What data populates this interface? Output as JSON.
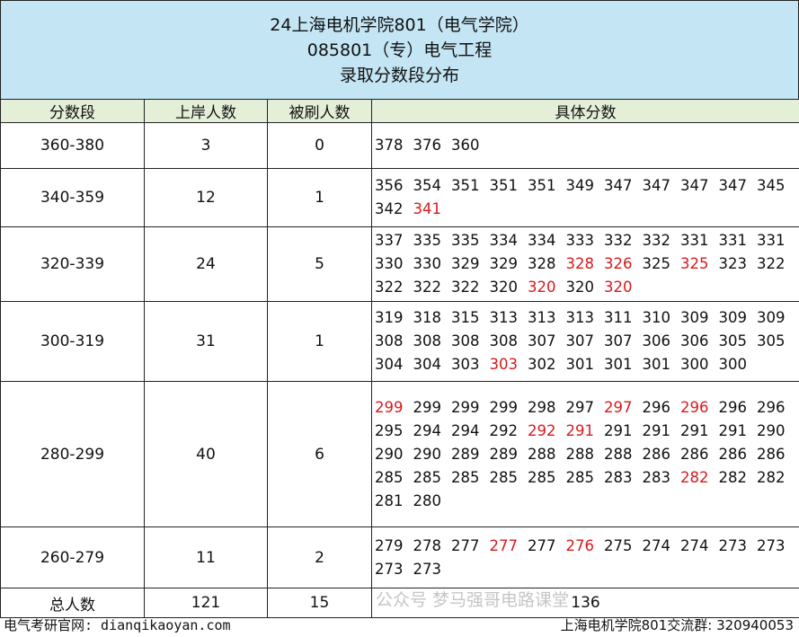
{
  "title": {
    "line1": "24上海电机学院801（电气学院）",
    "line2": "085801（专）电气工程",
    "line3": "录取分数段分布"
  },
  "headers": [
    "分数段",
    "上岸人数",
    "被刷人数",
    "具体分数"
  ],
  "rows": [
    {
      "range": "360-380",
      "admitted": "3",
      "rejected": "0",
      "scores": [
        [
          "378",
          0
        ],
        [
          "376",
          0
        ],
        [
          "360",
          0
        ]
      ]
    },
    {
      "range": "340-359",
      "admitted": "12",
      "rejected": "1",
      "scores": [
        [
          "356",
          0
        ],
        [
          "354",
          0
        ],
        [
          "351",
          0
        ],
        [
          "351",
          0
        ],
        [
          "351",
          0
        ],
        [
          "349",
          0
        ],
        [
          "347",
          0
        ],
        [
          "347",
          0
        ],
        [
          "347",
          0
        ],
        [
          "347",
          0
        ],
        [
          "345",
          0
        ],
        [
          "342",
          0
        ],
        [
          "341",
          1
        ]
      ]
    },
    {
      "range": "320-339",
      "admitted": "24",
      "rejected": "5",
      "scores": [
        [
          "337",
          0
        ],
        [
          "335",
          0
        ],
        [
          "335",
          0
        ],
        [
          "334",
          0
        ],
        [
          "334",
          0
        ],
        [
          "333",
          0
        ],
        [
          "332",
          0
        ],
        [
          "332",
          0
        ],
        [
          "331",
          0
        ],
        [
          "331",
          0
        ],
        [
          "331",
          0
        ],
        [
          "330",
          0
        ],
        [
          "330",
          0
        ],
        [
          "329",
          0
        ],
        [
          "329",
          0
        ],
        [
          "328",
          0
        ],
        [
          "328",
          1
        ],
        [
          "326",
          1
        ],
        [
          "325",
          0
        ],
        [
          "325",
          1
        ],
        [
          "323",
          0
        ],
        [
          "322",
          0
        ],
        [
          "322",
          0
        ],
        [
          "322",
          0
        ],
        [
          "322",
          0
        ],
        [
          "320",
          0
        ],
        [
          "320",
          1
        ],
        [
          "320",
          0
        ],
        [
          "320",
          1
        ]
      ]
    },
    {
      "range": "300-319",
      "admitted": "31",
      "rejected": "1",
      "scores": [
        [
          "319",
          0
        ],
        [
          "318",
          0
        ],
        [
          "315",
          0
        ],
        [
          "313",
          0
        ],
        [
          "313",
          0
        ],
        [
          "313",
          0
        ],
        [
          "311",
          0
        ],
        [
          "310",
          0
        ],
        [
          "309",
          0
        ],
        [
          "309",
          0
        ],
        [
          "309",
          0
        ],
        [
          "308",
          0
        ],
        [
          "308",
          0
        ],
        [
          "308",
          0
        ],
        [
          "308",
          0
        ],
        [
          "307",
          0
        ],
        [
          "307",
          0
        ],
        [
          "307",
          0
        ],
        [
          "306",
          0
        ],
        [
          "306",
          0
        ],
        [
          "305",
          0
        ],
        [
          "305",
          0
        ],
        [
          "304",
          0
        ],
        [
          "304",
          0
        ],
        [
          "303",
          0
        ],
        [
          "303",
          1
        ],
        [
          "302",
          0
        ],
        [
          "301",
          0
        ],
        [
          "301",
          0
        ],
        [
          "301",
          0
        ],
        [
          "300",
          0
        ],
        [
          "300",
          0
        ]
      ]
    },
    {
      "range": "280-299",
      "admitted": "40",
      "rejected": "6",
      "scores": [
        [
          "299",
          1
        ],
        [
          "299",
          0
        ],
        [
          "299",
          0
        ],
        [
          "299",
          0
        ],
        [
          "298",
          0
        ],
        [
          "297",
          0
        ],
        [
          "297",
          1
        ],
        [
          "296",
          0
        ],
        [
          "296",
          1
        ],
        [
          "296",
          0
        ],
        [
          "296",
          0
        ],
        [
          "295",
          0
        ],
        [
          "294",
          0
        ],
        [
          "294",
          0
        ],
        [
          "292",
          0
        ],
        [
          "292",
          1
        ],
        [
          "291",
          1
        ],
        [
          "291",
          0
        ],
        [
          "291",
          0
        ],
        [
          "291",
          0
        ],
        [
          "291",
          0
        ],
        [
          "290",
          0
        ],
        [
          "290",
          0
        ],
        [
          "290",
          0
        ],
        [
          "289",
          0
        ],
        [
          "289",
          0
        ],
        [
          "288",
          0
        ],
        [
          "288",
          0
        ],
        [
          "288",
          0
        ],
        [
          "286",
          0
        ],
        [
          "286",
          0
        ],
        [
          "286",
          0
        ],
        [
          "286",
          0
        ],
        [
          "285",
          0
        ],
        [
          "285",
          0
        ],
        [
          "285",
          0
        ],
        [
          "285",
          0
        ],
        [
          "285",
          0
        ],
        [
          "285",
          0
        ],
        [
          "283",
          0
        ],
        [
          "283",
          0
        ],
        [
          "282",
          1
        ],
        [
          "282",
          0
        ],
        [
          "282",
          0
        ],
        [
          "281",
          0
        ],
        [
          "280",
          0
        ]
      ]
    },
    {
      "range": "260-279",
      "admitted": "11",
      "rejected": "2",
      "scores": [
        [
          "279",
          0
        ],
        [
          "278",
          0
        ],
        [
          "277",
          0
        ],
        [
          "277",
          1
        ],
        [
          "277",
          0
        ],
        [
          "276",
          1
        ],
        [
          "275",
          0
        ],
        [
          "274",
          0
        ],
        [
          "274",
          0
        ],
        [
          "273",
          0
        ],
        [
          "273",
          0
        ],
        [
          "273",
          0
        ],
        [
          "273",
          0
        ]
      ]
    }
  ],
  "total": {
    "label": "总人数",
    "admitted": "121",
    "rejected": "15",
    "all": "136"
  },
  "footer": {
    "left": "电气考研官网: dianqikaoyan.com",
    "right": "上海电机学院801交流群: 320940053"
  },
  "watermark": "公众号 梦马强哥电路课堂",
  "colors": {
    "title_bg": "#c4e5f4",
    "header_bg": "#e4efd8",
    "rejected_score": "#d9191c"
  }
}
